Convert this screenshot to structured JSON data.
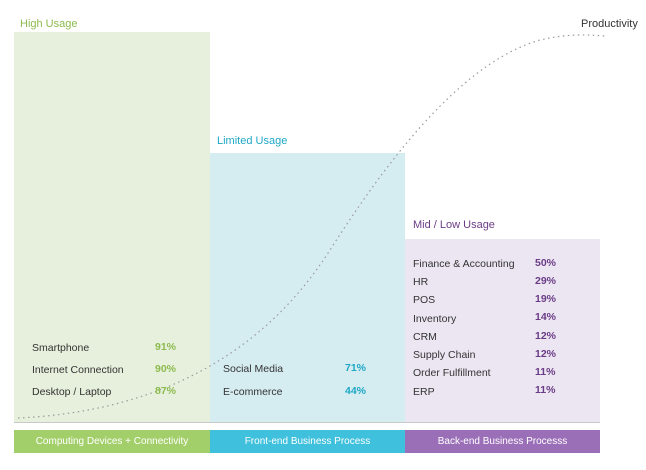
{
  "productivity_label": "Productivity",
  "groups": [
    {
      "heading": "High Usage",
      "footer": "Computing Devices + Connectivity",
      "items": [
        {
          "label": "Smartphone",
          "value": "91%"
        },
        {
          "label": "Internet Connection",
          "value": "90%"
        },
        {
          "label": "Desktop / Laptop",
          "value": "87%"
        }
      ]
    },
    {
      "heading": "Limited Usage",
      "footer": "Front-end Business Process",
      "items": [
        {
          "label": "Social Media",
          "value": "71%"
        },
        {
          "label": "E-commerce",
          "value": "44%"
        }
      ]
    },
    {
      "heading": "Mid / Low Usage",
      "footer": "Back-end Business Processs",
      "items": [
        {
          "label": "Finance & Accounting",
          "value": "50%"
        },
        {
          "label": "HR",
          "value": "29%"
        },
        {
          "label": "POS",
          "value": "19%"
        },
        {
          "label": "Inventory",
          "value": "14%"
        },
        {
          "label": "CRM",
          "value": "12%"
        },
        {
          "label": "Supply Chain",
          "value": "12%"
        },
        {
          "label": "Order Fulfillment",
          "value": "11%"
        },
        {
          "label": "ERP",
          "value": "11%"
        }
      ]
    }
  ],
  "colors": {
    "high": "#8dbb4e",
    "limited": "#1ea8c6",
    "mid": "#6b3c86"
  }
}
